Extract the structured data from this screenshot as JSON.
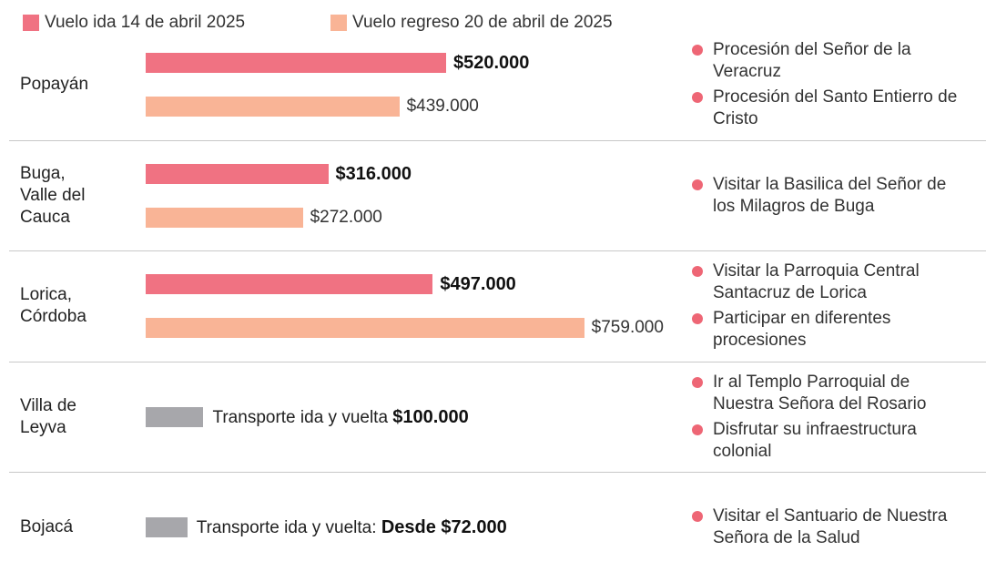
{
  "chart_data": {
    "type": "bar",
    "categories": [
      "Popayán",
      "Buga, Valle del Cauca",
      "Lorica, Córdoba",
      "Villa de Leyva",
      "Bojacá"
    ],
    "series": [
      {
        "name": "Vuelo ida 14 de abril 2025",
        "color": "#f07282",
        "values": [
          520000,
          316000,
          497000,
          null,
          null
        ],
        "value_labels": [
          "$520.000",
          "$316.000",
          "$497.000",
          null,
          null
        ]
      },
      {
        "name": "Vuelo regreso 20 de abril de 2025",
        "color": "#f9b496",
        "values": [
          439000,
          272000,
          759000,
          null,
          null
        ],
        "value_labels": [
          "$439.000",
          "$272.000",
          "$759.000",
          null,
          null
        ]
      }
    ],
    "transport": [
      null,
      null,
      null,
      {
        "label": "Transporte ida y vuelta",
        "value": 100000,
        "value_label": "$100.000",
        "color": "#a7a7ab"
      },
      {
        "label": "Transporte ida y vuelta:",
        "value": 72000,
        "value_label": "Desde $72.000",
        "color": "#a7a7ab"
      }
    ],
    "activities": [
      [
        "Procesión del Señor de la Veracruz",
        "Procesión del Santo Entierro de Cristo"
      ],
      [
        "Visitar la Basilica del Señor de los Milagros de Buga"
      ],
      [
        "Visitar la Parroquia Central Santacruz de Lorica",
        "Participar en diferentes procesiones"
      ],
      [
        "Ir al Templo Parroquial de Nuestra Señora del Rosario",
        "Disfrutar su infraestructura colonial"
      ],
      [
        "Visitar el Santuario de Nuestra Señora de la Salud"
      ]
    ],
    "bullet_color": "#ee6675"
  }
}
